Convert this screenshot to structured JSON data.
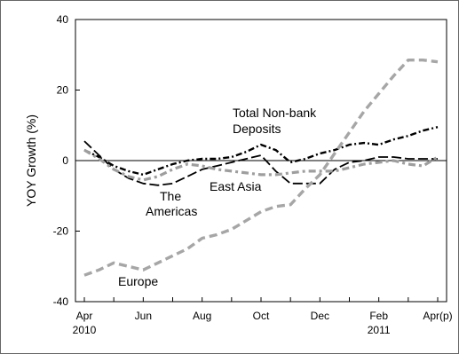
{
  "chart_data": {
    "type": "line",
    "title": "",
    "xlabel": "",
    "ylabel": "YOY Growth (%)",
    "ylim": [
      -40,
      40
    ],
    "yticks": [
      40,
      20,
      0,
      -20,
      -40
    ],
    "grid": false,
    "legend": "none",
    "x": [
      "Apr 2010",
      "May 2010",
      "Jun 2010",
      "Jul 2010",
      "Aug 2010",
      "Sep 2010",
      "Oct 2010",
      "Nov 2010",
      "Dec 2010",
      "Jan 2011",
      "Feb 2011",
      "Mar 2011",
      "Apr(p) 2011"
    ],
    "xtick_labels": [
      {
        "index": 0,
        "label": "Apr"
      },
      {
        "index": 2,
        "label": "Jun"
      },
      {
        "index": 4,
        "label": "Aug"
      },
      {
        "index": 6,
        "label": "Oct"
      },
      {
        "index": 8,
        "label": "Dec"
      },
      {
        "index": 10,
        "label": "Feb"
      },
      {
        "index": 12,
        "label": "Apr(p)"
      }
    ],
    "year_labels": [
      {
        "index": 0,
        "label": "2010"
      },
      {
        "index": 10,
        "label": "2011"
      }
    ],
    "series": [
      {
        "name": "Total Non-bank Deposits",
        "style": "dash-dot",
        "color": "#000000",
        "x": [
          0,
          0.5,
          1,
          1.5,
          2,
          2.5,
          3,
          3.5,
          4,
          4.5,
          5,
          5.5,
          6,
          6.5,
          7,
          7.5,
          8,
          8.5,
          9,
          9.5,
          10,
          10.5,
          11,
          11.5,
          12
        ],
        "values": [
          3,
          1,
          -1.5,
          -3,
          -4,
          -2.5,
          -1,
          0,
          0.5,
          0.5,
          1,
          2.5,
          4.5,
          3,
          -0.5,
          0.5,
          2,
          3,
          4.5,
          5,
          4.5,
          6,
          7,
          8.5,
          9.5
        ]
      },
      {
        "name": "The Americas",
        "style": "long-dash",
        "color": "#000000",
        "x": [
          0,
          0.5,
          1,
          1.5,
          2,
          2.5,
          3,
          3.5,
          4,
          4.5,
          5,
          5.5,
          6,
          6.5,
          7,
          7.5,
          8,
          8.5,
          9,
          9.5,
          10,
          10.5,
          11,
          11.5,
          12
        ],
        "values": [
          5.5,
          1.5,
          -2.5,
          -5,
          -6.5,
          -7,
          -6.5,
          -4.5,
          -2.5,
          -1.5,
          -0.5,
          0.5,
          1.5,
          -3,
          -6.5,
          -6.5,
          -6.5,
          -2.5,
          -0.5,
          0,
          1,
          1,
          0.5,
          0.5,
          0.5
        ]
      },
      {
        "name": "East Asia",
        "style": "dash-dot-grey",
        "color": "#9e9e9e",
        "x": [
          0,
          0.5,
          1,
          1.5,
          2,
          2.5,
          3,
          3.5,
          4,
          4.5,
          5,
          5.5,
          6,
          6.5,
          7,
          7.5,
          8,
          8.5,
          9,
          9.5,
          10,
          10.5,
          11,
          11.5,
          12
        ],
        "values": [
          3,
          0.5,
          -2.5,
          -4.5,
          -5.5,
          -4.5,
          -2.5,
          -1,
          -1.5,
          -2.5,
          -3,
          -3.5,
          -4,
          -4,
          -3.5,
          -3,
          -3,
          -3,
          -2,
          -1,
          -0.5,
          0,
          -1,
          -1.5,
          1
        ]
      },
      {
        "name": "Europe",
        "style": "dash-grey",
        "color": "#a6a6a6",
        "x": [
          0,
          0.5,
          1,
          1.5,
          2,
          2.5,
          3,
          3.5,
          4,
          4.5,
          5,
          5.5,
          6,
          6.5,
          7,
          7.5,
          8,
          8.5,
          9,
          9.5,
          10,
          10.5,
          11,
          11.5,
          12
        ],
        "values": [
          -32.5,
          -31,
          -29,
          -30,
          -31,
          -29,
          -27,
          -25,
          -22,
          -21,
          -19.5,
          -17,
          -14.5,
          -13,
          -12.5,
          -8,
          -4,
          2,
          8,
          14,
          19,
          24,
          28.5,
          28.5,
          28
        ]
      }
    ],
    "annotations": [
      {
        "id": "total",
        "lines": [
          "Total Non-bank",
          "Deposits"
        ]
      },
      {
        "id": "americas",
        "lines": [
          "The",
          "Americas"
        ]
      },
      {
        "id": "eastasia",
        "lines": [
          "East Asia"
        ]
      },
      {
        "id": "europe",
        "lines": [
          "Europe"
        ]
      }
    ]
  }
}
